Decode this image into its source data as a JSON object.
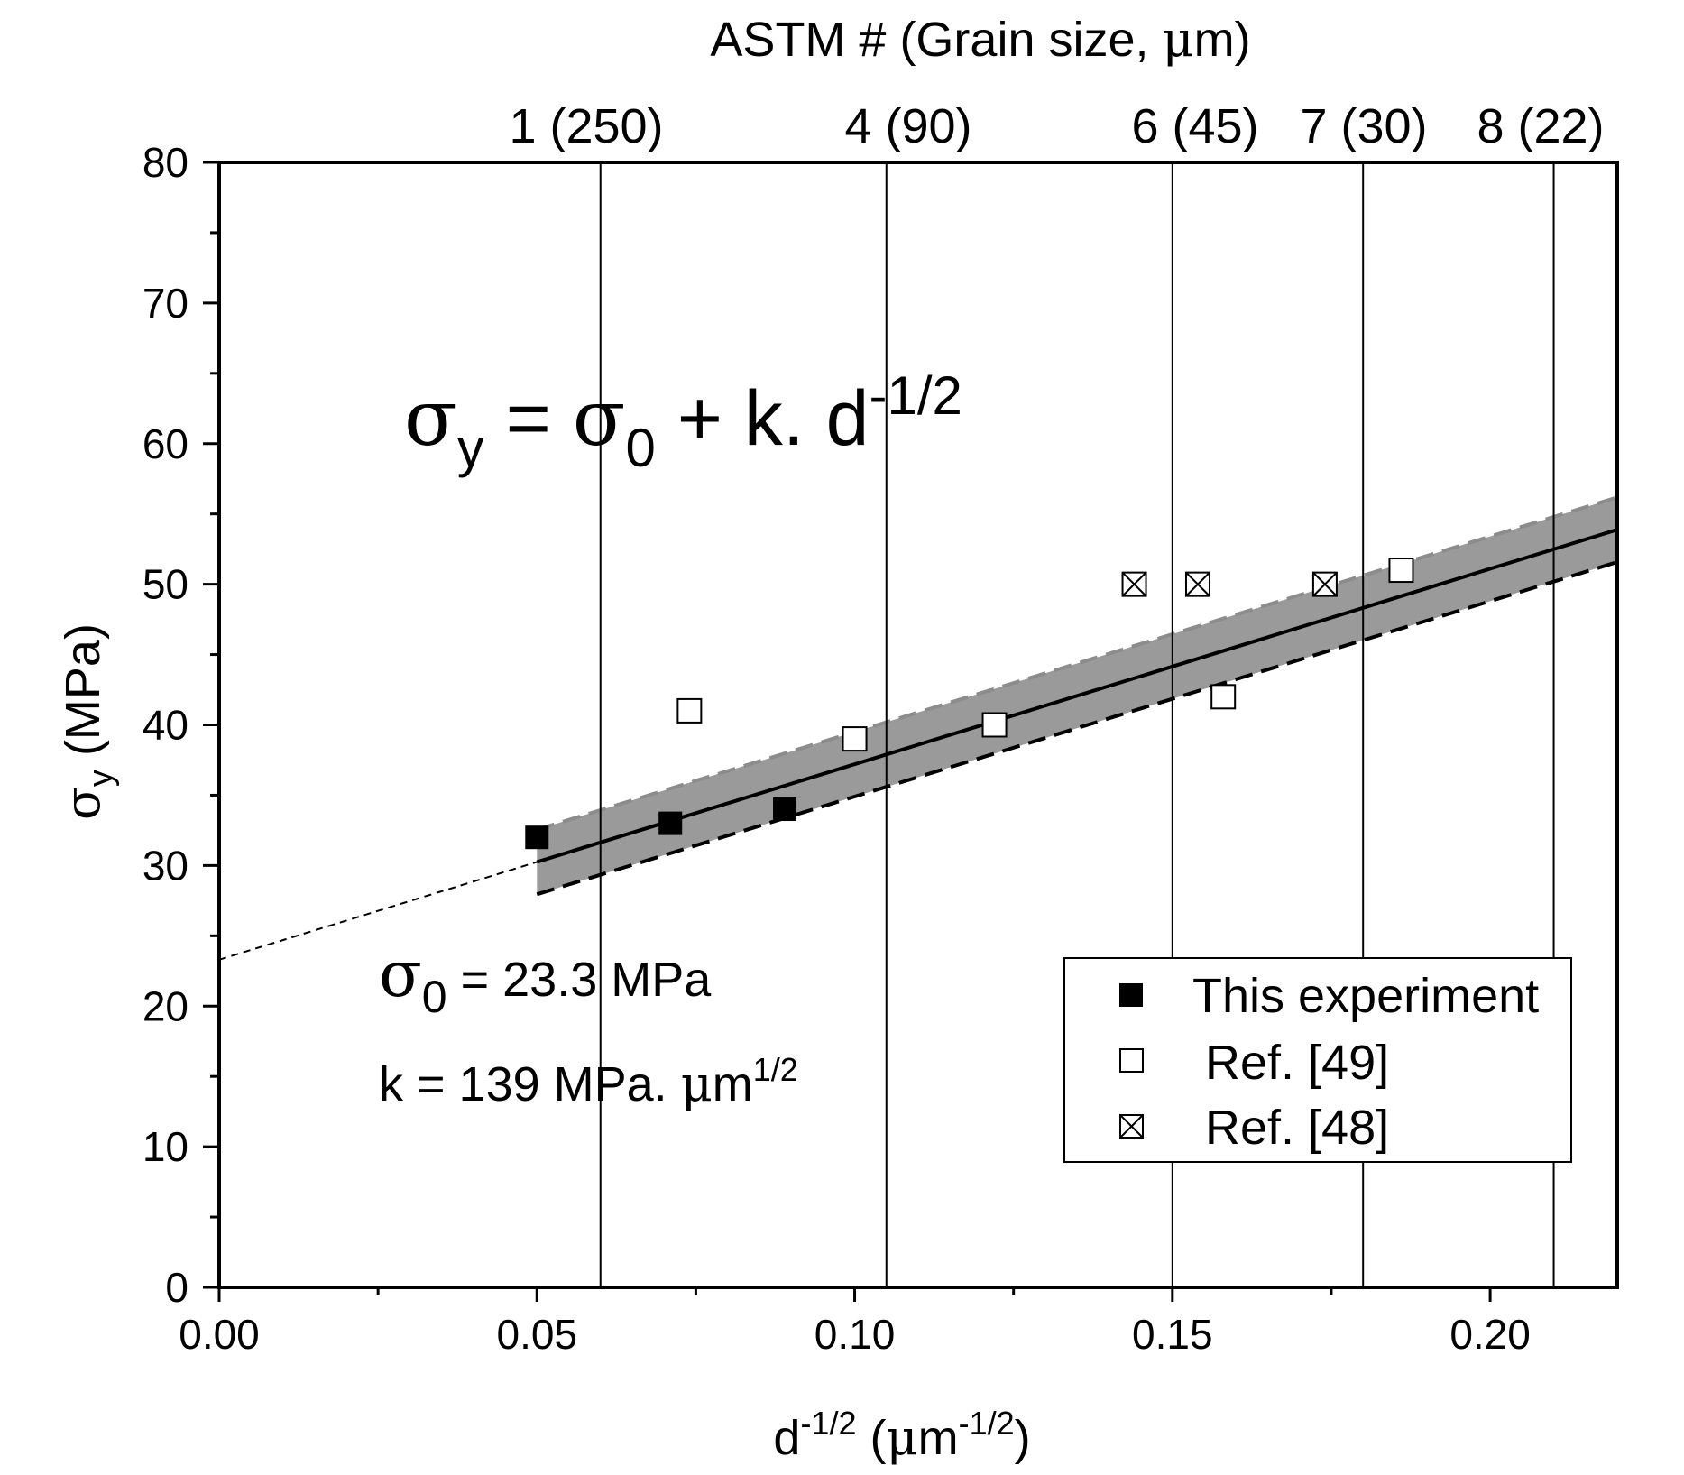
{
  "chart_data": {
    "type": "scatter",
    "xlabel": {
      "base": "d",
      "base_sup": "-1/2",
      "paren_open": " (",
      "mu": "μ",
      "unit": "m",
      "unit_sup": "-1/2",
      "paren_close": ")"
    },
    "ylabel": {
      "sigma": "σ",
      "sub": "y",
      "unit": " (MPa)"
    },
    "top_axis_title": {
      "text_before_mu": "ASTM # (Grain size, ",
      "mu": "μ",
      "text_after_mu": "m)"
    },
    "xlim": [
      0,
      0.22
    ],
    "ylim": [
      0,
      80
    ],
    "x_ticks": [
      0.0,
      0.05,
      0.1,
      0.15,
      0.2
    ],
    "x_tick_labels": [
      "0.00",
      "0.05",
      "0.10",
      "0.15",
      "0.20"
    ],
    "y_ticks": [
      0,
      10,
      20,
      30,
      40,
      50,
      60,
      70,
      80
    ],
    "y_tick_labels": [
      "0",
      "10",
      "20",
      "30",
      "40",
      "50",
      "60",
      "70",
      "80"
    ],
    "astm_lines": [
      {
        "x": 0.06,
        "label": "1 (250)"
      },
      {
        "x": 0.105,
        "label": "4 (90)"
      },
      {
        "x": 0.15,
        "label": "6 (45)"
      },
      {
        "x": 0.18,
        "label": "7 (30)"
      },
      {
        "x": 0.21,
        "label": "8 (22)"
      }
    ],
    "series": [
      {
        "name": "This experiment",
        "marker": "filled-square",
        "x": [
          0.05,
          0.071,
          0.089
        ],
        "y": [
          32,
          33,
          34
        ]
      },
      {
        "name": "Ref. [49]",
        "marker": "open-square",
        "x": [
          0.074,
          0.1,
          0.122,
          0.158,
          0.186
        ],
        "y": [
          41,
          39,
          40,
          42,
          51
        ]
      },
      {
        "name": "Ref. [48]",
        "marker": "crossed-square",
        "x": [
          0.144,
          0.154,
          0.174
        ],
        "y": [
          50,
          50,
          50
        ]
      }
    ],
    "fit": {
      "sigma0": 23.3,
      "k": 139,
      "x_range": [
        0.05,
        0.22
      ],
      "band_halfwidth": 2.3,
      "extrapolation_range": [
        0,
        0.05
      ]
    },
    "equation": {
      "s1": "σ",
      "s1sub": "y",
      "eq": " = ",
      "s2": "σ",
      "s2sub": "0",
      "plus": " + k. d",
      "sup": "-1/2"
    },
    "annotation_sigma0": {
      "sigma": "σ",
      "sub": "0",
      "text": " = 23.3 MPa"
    },
    "annotation_k": {
      "text": "k = 139 MPa. ",
      "mu": "μ",
      "unit": "m",
      "sup": "1/2"
    },
    "legend_position": "bottom-right"
  }
}
